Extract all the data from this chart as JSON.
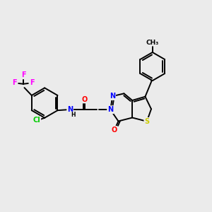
{
  "background_color": "#ebebeb",
  "bond_color": "#000000",
  "bond_width": 1.4,
  "atom_colors": {
    "N": "#0000ff",
    "O": "#ff0000",
    "S": "#cccc00",
    "F": "#ff00ff",
    "Cl": "#00cc00",
    "H": "#000000",
    "C": "#000000"
  },
  "font_size": 7.0
}
